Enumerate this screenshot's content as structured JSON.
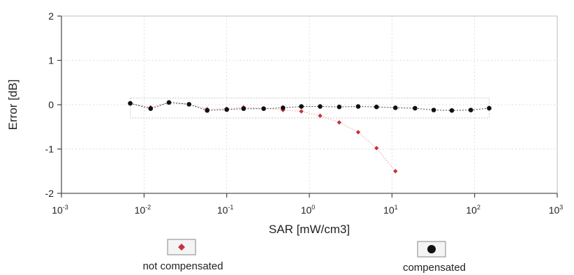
{
  "chart_data": {
    "type": "scatter",
    "title": "",
    "xlabel": "SAR [mW/cm3]",
    "ylabel": "Error [dB]",
    "xscale": "log",
    "xlim": [
      0.001,
      1000
    ],
    "ylim": [
      -2,
      2
    ],
    "x_ticks": [
      {
        "base": "10",
        "exp": "-3",
        "value": 0.001
      },
      {
        "base": "10",
        "exp": "-2",
        "value": 0.01
      },
      {
        "base": "10",
        "exp": "-1",
        "value": 0.1
      },
      {
        "base": "10",
        "exp": "0",
        "value": 1
      },
      {
        "base": "10",
        "exp": "1",
        "value": 10
      },
      {
        "base": "10",
        "exp": "2",
        "value": 100
      },
      {
        "base": "10",
        "exp": "3",
        "value": 1000
      }
    ],
    "y_ticks": [
      {
        "label": "2",
        "value": 2
      },
      {
        "label": "1",
        "value": 1
      },
      {
        "label": "0",
        "value": 0
      },
      {
        "label": "-1",
        "value": -1
      },
      {
        "label": "-2",
        "value": -2
      }
    ],
    "uncertainty_band": [
      -0.3,
      0.15
    ],
    "grid": true,
    "legend_position": "bottom",
    "series": [
      {
        "name": "not compensated",
        "color": "#c8323c",
        "marker": "diamond",
        "x": [
          0.0068,
          0.012,
          0.02,
          0.035,
          0.058,
          0.1,
          0.16,
          0.28,
          0.48,
          0.8,
          1.35,
          2.3,
          3.9,
          6.5,
          11
        ],
        "y": [
          0.03,
          -0.06,
          0.05,
          0.01,
          -0.1,
          -0.09,
          -0.06,
          -0.08,
          -0.12,
          -0.15,
          -0.25,
          -0.4,
          -0.62,
          -0.98,
          -1.5
        ]
      },
      {
        "name": "compensated",
        "color": "#111111",
        "marker": "circle",
        "x": [
          0.0068,
          0.012,
          0.02,
          0.035,
          0.058,
          0.1,
          0.16,
          0.28,
          0.48,
          0.8,
          1.35,
          2.3,
          3.9,
          6.5,
          11,
          19,
          32,
          53,
          90,
          150
        ],
        "y": [
          0.03,
          -0.09,
          0.05,
          0.01,
          -0.13,
          -0.11,
          -0.09,
          -0.09,
          -0.07,
          -0.04,
          -0.04,
          -0.05,
          -0.04,
          -0.05,
          -0.07,
          -0.08,
          -0.12,
          -0.13,
          -0.12,
          -0.08
        ]
      }
    ]
  }
}
